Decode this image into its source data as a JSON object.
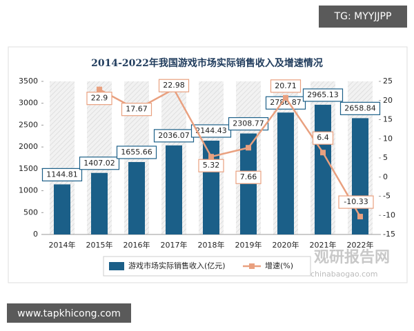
{
  "tag": "TG: MYYJJPP",
  "site": "www.tapkhicong.com",
  "watermark": {
    "name": "观研报告网",
    "url": "chinabaogao.com"
  },
  "chart_data": {
    "type": "bar",
    "title": "2014-2022年我国游戏市场实际销售收入及增速情况",
    "categories": [
      "2014年",
      "2015年",
      "2016年",
      "2017年",
      "2018年",
      "2019年",
      "2020年",
      "2021年",
      "2022年"
    ],
    "series": [
      {
        "name": "游戏市场实际销售收入(亿元)",
        "color": "#1b5f88",
        "type": "bar",
        "values": [
          1144.81,
          1407.02,
          1655.66,
          2036.07,
          2144.43,
          2308.77,
          2786.87,
          2965.13,
          2658.84
        ]
      },
      {
        "name": "增速(%)",
        "color": "#e9a07f",
        "type": "line",
        "axis": "y2",
        "values": [
          null,
          22.9,
          17.67,
          22.98,
          5.32,
          7.66,
          20.71,
          6.4,
          -10.33
        ]
      }
    ],
    "ylim": [
      0,
      3500
    ],
    "yticks": [
      0,
      500,
      1000,
      1500,
      2000,
      2500,
      3000,
      3500
    ],
    "y2lim": [
      -15,
      25
    ],
    "y2ticks": [
      -15,
      -10,
      -5,
      0,
      5,
      10,
      15,
      20,
      25
    ]
  }
}
